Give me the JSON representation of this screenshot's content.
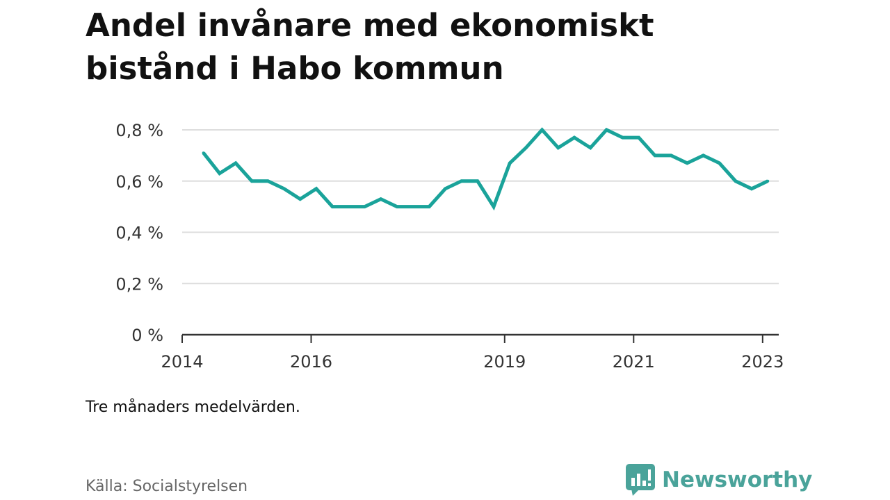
{
  "title": "Andel invånare med ekonomiskt bistånd i Habo kommun",
  "note": "Tre månaders medelvärden.",
  "source": "Källa: Socialstyrelsen",
  "logo": {
    "text": "Newsworthy",
    "icon": "newsworthy-logo-icon",
    "color": "#4aa39a"
  },
  "colors": {
    "line": "#1aa39a",
    "grid": "#dddddd",
    "axis": "#333333"
  },
  "chart_data": {
    "type": "line",
    "title": "Andel invånare med ekonomiskt bistånd i Habo kommun",
    "xlabel": "",
    "ylabel": "",
    "ylim": [
      0,
      0.8
    ],
    "xlim": [
      2014.0,
      2023.25
    ],
    "grid": true,
    "y_ticks": [
      {
        "value": 0,
        "label": "0 %"
      },
      {
        "value": 0.2,
        "label": "0,2 %"
      },
      {
        "value": 0.4,
        "label": "0,4 %"
      },
      {
        "value": 0.6,
        "label": "0,6 %"
      },
      {
        "value": 0.8,
        "label": "0,8 %"
      }
    ],
    "x_ticks": [
      {
        "value": 2014.0,
        "label": "2014"
      },
      {
        "value": 2016.0,
        "label": "2016"
      },
      {
        "value": 2019.0,
        "label": "2019"
      },
      {
        "value": 2021.0,
        "label": "2021"
      },
      {
        "value": 2023.0,
        "label": "2023"
      }
    ],
    "series": [
      {
        "x": [
          2014.33,
          2014.58,
          2014.83,
          2015.08,
          2015.33,
          2015.58,
          2015.83,
          2016.08,
          2016.33,
          2016.58,
          2016.83,
          2017.08,
          2017.33,
          2017.58,
          2017.83,
          2018.08,
          2018.33,
          2018.58,
          2018.83,
          2019.08,
          2019.33,
          2019.58,
          2019.83,
          2020.08,
          2020.33,
          2020.58,
          2020.83,
          2021.08,
          2021.33,
          2021.58,
          2021.83,
          2022.08,
          2022.33,
          2022.58,
          2022.83,
          2023.08
        ],
        "values": [
          0.71,
          0.63,
          0.67,
          0.6,
          0.6,
          0.57,
          0.53,
          0.57,
          0.5,
          0.5,
          0.5,
          0.53,
          0.5,
          0.5,
          0.5,
          0.57,
          0.6,
          0.6,
          0.5,
          0.67,
          0.73,
          0.8,
          0.73,
          0.77,
          0.73,
          0.8,
          0.77,
          0.77,
          0.7,
          0.7,
          0.67,
          0.7,
          0.67,
          0.6,
          0.57,
          0.6
        ]
      }
    ]
  }
}
